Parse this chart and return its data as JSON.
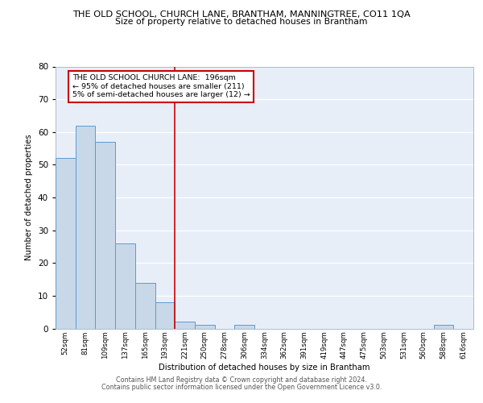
{
  "title1": "THE OLD SCHOOL, CHURCH LANE, BRANTHAM, MANNINGTREE, CO11 1QA",
  "title2": "Size of property relative to detached houses in Brantham",
  "xlabel": "Distribution of detached houses by size in Brantham",
  "ylabel": "Number of detached properties",
  "bin_labels": [
    "52sqm",
    "81sqm",
    "109sqm",
    "137sqm",
    "165sqm",
    "193sqm",
    "221sqm",
    "250sqm",
    "278sqm",
    "306sqm",
    "334sqm",
    "362sqm",
    "391sqm",
    "419sqm",
    "447sqm",
    "475sqm",
    "503sqm",
    "531sqm",
    "560sqm",
    "588sqm",
    "616sqm"
  ],
  "bar_values": [
    52,
    62,
    57,
    26,
    14,
    8,
    2,
    1,
    0,
    1,
    0,
    0,
    0,
    0,
    0,
    0,
    0,
    0,
    0,
    1,
    0
  ],
  "bar_color": "#c8d8e8",
  "bar_edge_color": "#5b9bd5",
  "vline_x": 5.5,
  "vline_color": "#cc0000",
  "annotation_text": "THE OLD SCHOOL CHURCH LANE:  196sqm\n← 95% of detached houses are smaller (211)\n5% of semi-detached houses are larger (12) →",
  "annotation_box_edge": "#cc0000",
  "ylim": [
    0,
    80
  ],
  "yticks": [
    0,
    10,
    20,
    30,
    40,
    50,
    60,
    70,
    80
  ],
  "background_color": "#e8eef8",
  "footer_line1": "Contains HM Land Registry data © Crown copyright and database right 2024.",
  "footer_line2": "Contains public sector information licensed under the Open Government Licence v3.0."
}
